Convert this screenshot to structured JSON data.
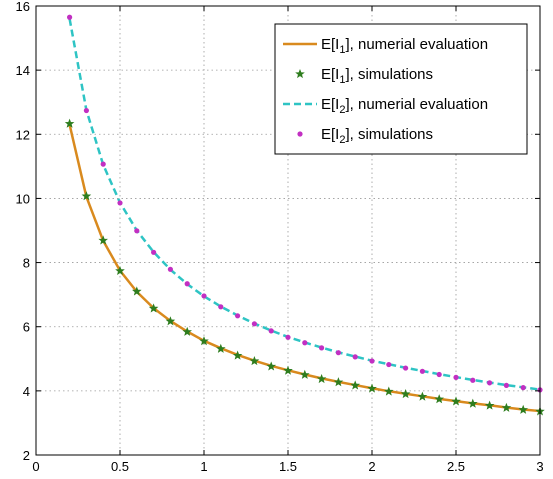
{
  "chart_data": {
    "type": "line",
    "title": "",
    "xlabel": "",
    "ylabel": "",
    "xlim": [
      0,
      3
    ],
    "ylim": [
      2,
      16
    ],
    "xticks": [
      0,
      0.5,
      1,
      1.5,
      2,
      2.5,
      3
    ],
    "xtick_labels": [
      "0",
      "0.5",
      "1",
      "1.5",
      "2",
      "2.5",
      "3"
    ],
    "yticks": [
      2,
      4,
      6,
      8,
      10,
      12,
      14,
      16
    ],
    "ytick_labels": [
      "2",
      "4",
      "6",
      "8",
      "10",
      "12",
      "14",
      "16"
    ],
    "grid": true,
    "legend_position": "top-right",
    "x": [
      0.2,
      0.3,
      0.4,
      0.5,
      0.6,
      0.7,
      0.8,
      0.9,
      1.0,
      1.1,
      1.2,
      1.3,
      1.4,
      1.5,
      1.6,
      1.7,
      1.8,
      1.9,
      2.0,
      2.1,
      2.2,
      2.3,
      2.4,
      2.5,
      2.6,
      2.7,
      2.8,
      2.9,
      3.0
    ],
    "series": [
      {
        "name_base": "E[I",
        "name_sub": "1",
        "name_rest": "], numerial evaluation",
        "style": "solid-line",
        "color": "#d98a1e",
        "values": [
          12.3,
          10.05,
          8.68,
          7.75,
          7.09,
          6.58,
          6.18,
          5.85,
          5.56,
          5.33,
          5.12,
          4.94,
          4.78,
          4.64,
          4.51,
          4.39,
          4.28,
          4.18,
          4.08,
          3.99,
          3.91,
          3.83,
          3.75,
          3.68,
          3.61,
          3.55,
          3.48,
          3.42,
          3.37
        ]
      },
      {
        "name_base": "E[I",
        "name_sub": "1",
        "name_rest": "], simulations",
        "style": "star-markers",
        "color": "#2e7d1e",
        "values": [
          12.33,
          10.07,
          8.69,
          7.74,
          7.1,
          6.57,
          6.17,
          5.84,
          5.55,
          5.31,
          5.1,
          4.93,
          4.76,
          4.63,
          4.5,
          4.37,
          4.27,
          4.17,
          4.07,
          3.98,
          3.9,
          3.82,
          3.74,
          3.67,
          3.6,
          3.54,
          3.47,
          3.41,
          3.36
        ]
      },
      {
        "name_base": "E[I",
        "name_sub": "2",
        "name_rest": "], numerial evaluation",
        "style": "dashed-line",
        "color": "#2ec4c4",
        "values": [
          15.6,
          12.75,
          11.05,
          9.87,
          9.0,
          8.33,
          7.78,
          7.33,
          6.95,
          6.63,
          6.35,
          6.1,
          5.88,
          5.68,
          5.51,
          5.35,
          5.2,
          5.07,
          4.94,
          4.83,
          4.72,
          4.62,
          4.52,
          4.43,
          4.34,
          4.26,
          4.18,
          4.11,
          4.04
        ]
      },
      {
        "name_base": "E[I",
        "name_sub": "2",
        "name_rest": "], simulations",
        "style": "dot-markers",
        "color": "#c22fc2",
        "values": [
          15.65,
          12.74,
          11.07,
          9.86,
          8.99,
          8.32,
          7.79,
          7.34,
          6.96,
          6.62,
          6.34,
          6.09,
          5.87,
          5.67,
          5.5,
          5.34,
          5.19,
          5.06,
          4.93,
          4.82,
          4.71,
          4.61,
          4.51,
          4.42,
          4.33,
          4.25,
          4.17,
          4.1,
          4.03
        ]
      }
    ]
  }
}
